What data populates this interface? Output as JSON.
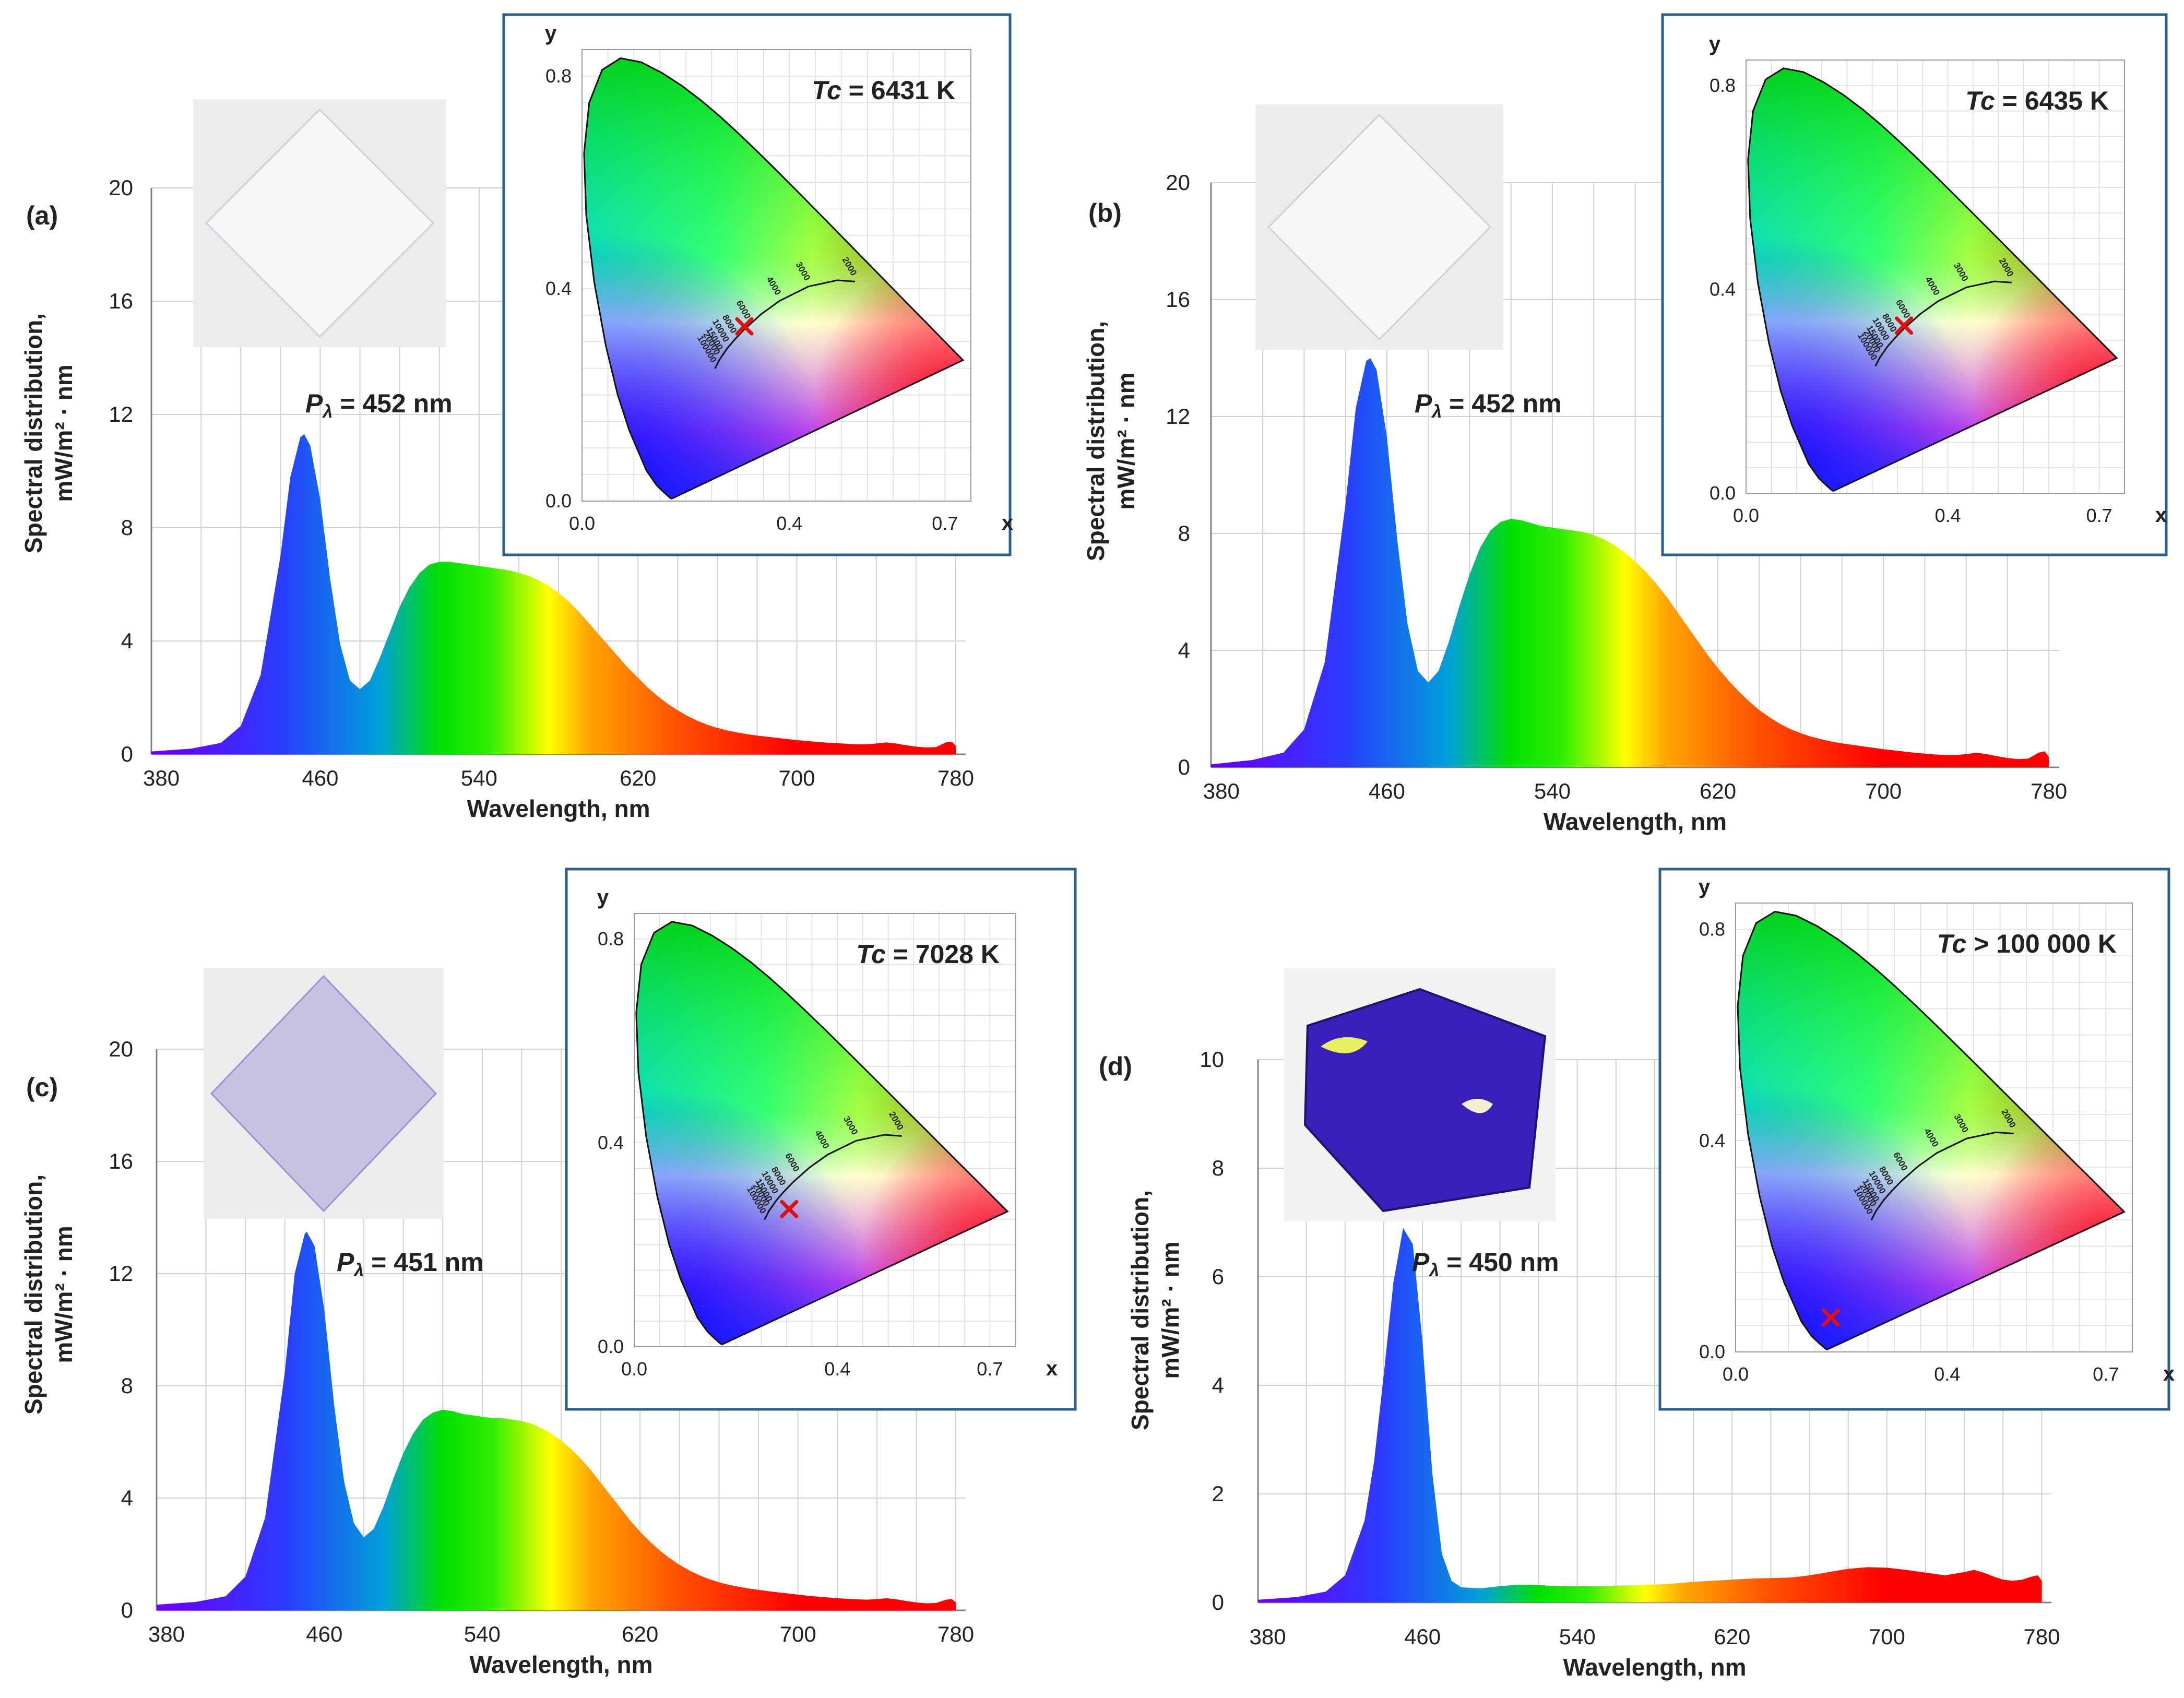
{
  "colors": {
    "gridline": "#d0d0d0",
    "axis": "#808080",
    "inset_frame": "#2a5f8f",
    "chromaticity_marker": "#e01010",
    "spectrum_gradient": [
      "#6a00ff",
      "#2a3cff",
      "#00a0d8",
      "#00e000",
      "#30ee00",
      "#ffff00",
      "#ffa500",
      "#ff5000",
      "#ff0000"
    ]
  },
  "chart_data": [
    {
      "panel_label": "(a)",
      "type": "area",
      "xlabel": "Wavelength, nm",
      "ylabel_line1": "Spectral distribution,",
      "ylabel_line2": "mW/m² · nm",
      "xlim": [
        375,
        785
      ],
      "ylim": [
        0,
        20
      ],
      "x_tick_values": [
        380,
        460,
        540,
        620,
        700,
        780
      ],
      "x_tick_labels": [
        "380",
        "460",
        "540",
        "620",
        "700",
        "780"
      ],
      "y_tick_values": [
        0,
        4,
        8,
        12,
        16,
        20
      ],
      "y_tick_labels": [
        "0",
        "4",
        "8",
        "12",
        "16",
        "20"
      ],
      "x": [
        375,
        395,
        410,
        420,
        430,
        440,
        445,
        450,
        452,
        455,
        460,
        465,
        470,
        475,
        480,
        485,
        490,
        495,
        500,
        505,
        510,
        515,
        520,
        525,
        530,
        535,
        540,
        545,
        550,
        555,
        560,
        565,
        570,
        575,
        580,
        585,
        590,
        595,
        600,
        605,
        610,
        615,
        620,
        625,
        630,
        635,
        640,
        645,
        650,
        655,
        660,
        665,
        670,
        675,
        680,
        685,
        690,
        695,
        700,
        705,
        710,
        715,
        720,
        725,
        730,
        735,
        740,
        745,
        750,
        755,
        760,
        765,
        770,
        775,
        778,
        780
      ],
      "y": [
        0.1,
        0.2,
        0.4,
        1.0,
        2.8,
        7.0,
        9.8,
        11.2,
        11.3,
        10.9,
        9.0,
        6.2,
        3.9,
        2.6,
        2.3,
        2.6,
        3.4,
        4.3,
        5.2,
        5.9,
        6.4,
        6.7,
        6.8,
        6.8,
        6.75,
        6.7,
        6.65,
        6.6,
        6.55,
        6.5,
        6.4,
        6.3,
        6.15,
        5.95,
        5.7,
        5.4,
        5.05,
        4.65,
        4.25,
        3.85,
        3.45,
        3.05,
        2.7,
        2.35,
        2.05,
        1.78,
        1.55,
        1.35,
        1.18,
        1.04,
        0.93,
        0.84,
        0.77,
        0.71,
        0.66,
        0.62,
        0.58,
        0.54,
        0.5,
        0.47,
        0.44,
        0.41,
        0.39,
        0.37,
        0.35,
        0.35,
        0.38,
        0.42,
        0.38,
        0.32,
        0.27,
        0.24,
        0.25,
        0.42,
        0.45,
        0.3
      ],
      "peak_label_prefix": "P",
      "peak_label_subscript": "λ",
      "peak_label_value": " = 452 nm",
      "inset": {
        "y_axis_name": "y",
        "x_axis_name": "x",
        "x_tick_labels": [
          "0.0",
          "0.4",
          "0.7"
        ],
        "y_tick_labels": [
          "0.0",
          "0.4",
          "0.8"
        ],
        "tc_symbol": "Tc",
        "tc_value": " = 6431 K",
        "point": [
          0.313,
          0.329
        ],
        "cct_labels": [
          "2000",
          "3000",
          "4000",
          "6000",
          "8000",
          "10000",
          "15000",
          "20000",
          "100000"
        ]
      }
    },
    {
      "panel_label": "(b)",
      "type": "area",
      "xlabel": "Wavelength, nm",
      "ylabel_line1": "Spectral distribution,",
      "ylabel_line2": "mW/m² · nm",
      "xlim": [
        375,
        785
      ],
      "ylim": [
        0,
        20
      ],
      "x_tick_values": [
        380,
        460,
        540,
        620,
        700,
        780
      ],
      "x_tick_labels": [
        "380",
        "460",
        "540",
        "620",
        "700",
        "780"
      ],
      "y_tick_values": [
        0,
        4,
        8,
        12,
        16,
        20
      ],
      "y_tick_labels": [
        "0",
        "4",
        "8",
        "12",
        "16",
        "20"
      ],
      "x": [
        375,
        395,
        410,
        420,
        430,
        440,
        445,
        450,
        452,
        455,
        460,
        465,
        470,
        475,
        480,
        485,
        490,
        495,
        500,
        505,
        510,
        515,
        520,
        525,
        530,
        535,
        540,
        545,
        550,
        555,
        560,
        565,
        570,
        575,
        580,
        585,
        590,
        595,
        600,
        605,
        610,
        615,
        620,
        625,
        630,
        635,
        640,
        645,
        650,
        655,
        660,
        665,
        670,
        675,
        680,
        685,
        690,
        695,
        700,
        705,
        710,
        715,
        720,
        725,
        730,
        735,
        740,
        745,
        750,
        755,
        760,
        765,
        770,
        775,
        778,
        780
      ],
      "y": [
        0.1,
        0.25,
        0.5,
        1.3,
        3.6,
        9.0,
        12.3,
        13.9,
        14.0,
        13.6,
        11.3,
        7.8,
        4.9,
        3.3,
        2.9,
        3.3,
        4.3,
        5.5,
        6.6,
        7.5,
        8.1,
        8.4,
        8.5,
        8.45,
        8.35,
        8.25,
        8.2,
        8.15,
        8.1,
        8.05,
        7.95,
        7.8,
        7.6,
        7.35,
        7.05,
        6.7,
        6.3,
        5.85,
        5.35,
        4.85,
        4.35,
        3.85,
        3.4,
        2.98,
        2.6,
        2.26,
        1.96,
        1.71,
        1.49,
        1.31,
        1.17,
        1.05,
        0.96,
        0.88,
        0.82,
        0.77,
        0.72,
        0.67,
        0.62,
        0.58,
        0.54,
        0.5,
        0.47,
        0.44,
        0.42,
        0.42,
        0.45,
        0.5,
        0.45,
        0.38,
        0.32,
        0.28,
        0.3,
        0.5,
        0.55,
        0.35
      ],
      "peak_label_prefix": "P",
      "peak_label_subscript": "λ",
      "peak_label_value": " = 452 nm",
      "inset": {
        "y_axis_name": "y",
        "x_axis_name": "x",
        "x_tick_labels": [
          "0.0",
          "0.4",
          "0.7"
        ],
        "y_tick_labels": [
          "0.0",
          "0.4",
          "0.8"
        ],
        "tc_symbol": "Tc",
        "tc_value": " = 6435 K",
        "point": [
          0.313,
          0.329
        ],
        "cct_labels": [
          "2000",
          "3000",
          "4000",
          "6000",
          "8000",
          "10000",
          "15000",
          "20000",
          "100000"
        ]
      }
    },
    {
      "panel_label": "(c)",
      "type": "area",
      "xlabel": "Wavelength, nm",
      "ylabel_line1": "Spectral distribution,",
      "ylabel_line2": "mW/m² · nm",
      "xlim": [
        375,
        785
      ],
      "ylim": [
        0,
        20
      ],
      "x_tick_values": [
        380,
        460,
        540,
        620,
        700,
        780
      ],
      "x_tick_labels": [
        "380",
        "460",
        "540",
        "620",
        "700",
        "780"
      ],
      "y_tick_values": [
        0,
        4,
        8,
        12,
        16,
        20
      ],
      "y_tick_labels": [
        "0",
        "4",
        "8",
        "12",
        "16",
        "20"
      ],
      "x": [
        375,
        395,
        410,
        420,
        430,
        440,
        445,
        450,
        451,
        455,
        460,
        465,
        470,
        475,
        480,
        485,
        490,
        495,
        500,
        505,
        510,
        515,
        520,
        525,
        530,
        535,
        540,
        545,
        550,
        555,
        560,
        565,
        570,
        575,
        580,
        585,
        590,
        595,
        600,
        605,
        610,
        615,
        620,
        625,
        630,
        635,
        640,
        645,
        650,
        655,
        660,
        665,
        670,
        675,
        680,
        685,
        690,
        695,
        700,
        705,
        710,
        715,
        720,
        725,
        730,
        735,
        740,
        745,
        750,
        755,
        760,
        765,
        770,
        775,
        778,
        780
      ],
      "y": [
        0.2,
        0.3,
        0.5,
        1.2,
        3.3,
        8.5,
        12.0,
        13.4,
        13.5,
        13.0,
        10.7,
        7.3,
        4.6,
        3.1,
        2.6,
        2.9,
        3.7,
        4.7,
        5.6,
        6.3,
        6.8,
        7.05,
        7.15,
        7.1,
        7.0,
        6.95,
        6.9,
        6.85,
        6.85,
        6.8,
        6.75,
        6.65,
        6.5,
        6.3,
        6.05,
        5.75,
        5.4,
        5.0,
        4.55,
        4.1,
        3.65,
        3.2,
        2.8,
        2.45,
        2.13,
        1.86,
        1.62,
        1.42,
        1.25,
        1.11,
        1.0,
        0.91,
        0.84,
        0.78,
        0.73,
        0.68,
        0.64,
        0.6,
        0.56,
        0.52,
        0.49,
        0.46,
        0.43,
        0.41,
        0.39,
        0.38,
        0.4,
        0.43,
        0.39,
        0.33,
        0.28,
        0.25,
        0.26,
        0.38,
        0.4,
        0.28
      ],
      "peak_label_prefix": "P",
      "peak_label_subscript": "λ",
      "peak_label_value": " = 451 nm",
      "inset": {
        "y_axis_name": "y",
        "x_axis_name": "x",
        "x_tick_labels": [
          "0.0",
          "0.4",
          "0.7"
        ],
        "y_tick_labels": [
          "0.0",
          "0.4",
          "0.8"
        ],
        "tc_symbol": "Tc",
        "tc_value": " = 7028 K",
        "point": [
          0.305,
          0.27
        ],
        "cct_labels": [
          "2000",
          "3000",
          "4000",
          "6000",
          "8000",
          "10000",
          "15000",
          "20000",
          "100000"
        ]
      }
    },
    {
      "panel_label": "(d)",
      "type": "area",
      "xlabel": "Wavelength, nm",
      "ylabel_line1": "Spectral distribution,",
      "ylabel_line2": "mW/m² · nm",
      "xlim": [
        375,
        785
      ],
      "ylim": [
        0,
        10
      ],
      "x_tick_values": [
        380,
        460,
        540,
        620,
        700,
        780
      ],
      "x_tick_labels": [
        "380",
        "460",
        "540",
        "620",
        "700",
        "780"
      ],
      "y_tick_values": [
        0,
        2,
        4,
        6,
        8,
        10
      ],
      "y_tick_labels": [
        "0",
        "2",
        "4",
        "6",
        "8",
        "10"
      ],
      "x": [
        375,
        395,
        410,
        420,
        430,
        435,
        440,
        445,
        450,
        455,
        460,
        465,
        470,
        475,
        480,
        490,
        500,
        510,
        520,
        530,
        540,
        550,
        560,
        570,
        580,
        590,
        600,
        610,
        620,
        630,
        640,
        650,
        660,
        670,
        680,
        690,
        700,
        710,
        720,
        730,
        740,
        745,
        750,
        755,
        760,
        765,
        770,
        775,
        778,
        780
      ],
      "y": [
        0.05,
        0.1,
        0.2,
        0.5,
        1.5,
        2.6,
        4.2,
        5.9,
        6.9,
        6.6,
        4.8,
        2.4,
        0.9,
        0.4,
        0.28,
        0.26,
        0.3,
        0.33,
        0.32,
        0.3,
        0.3,
        0.3,
        0.31,
        0.32,
        0.33,
        0.35,
        0.38,
        0.4,
        0.42,
        0.44,
        0.45,
        0.46,
        0.5,
        0.56,
        0.62,
        0.65,
        0.64,
        0.6,
        0.55,
        0.5,
        0.56,
        0.6,
        0.55,
        0.48,
        0.42,
        0.4,
        0.42,
        0.48,
        0.5,
        0.4
      ],
      "peak_label_prefix": "P",
      "peak_label_subscript": "λ",
      "peak_label_value": " = 450 nm",
      "inset": {
        "y_axis_name": "y",
        "x_axis_name": "x",
        "x_tick_labels": [
          "0.0",
          "0.4",
          "0.7"
        ],
        "y_tick_labels": [
          "0.0",
          "0.4",
          "0.8"
        ],
        "tc_symbol": "Tc",
        "tc_value": " > 100 000 K",
        "point": [
          0.18,
          0.065
        ],
        "cct_labels": [
          "2000",
          "3000",
          "4000",
          "6000",
          "8000",
          "10000",
          "15000",
          "20000",
          "100000"
        ]
      }
    }
  ]
}
